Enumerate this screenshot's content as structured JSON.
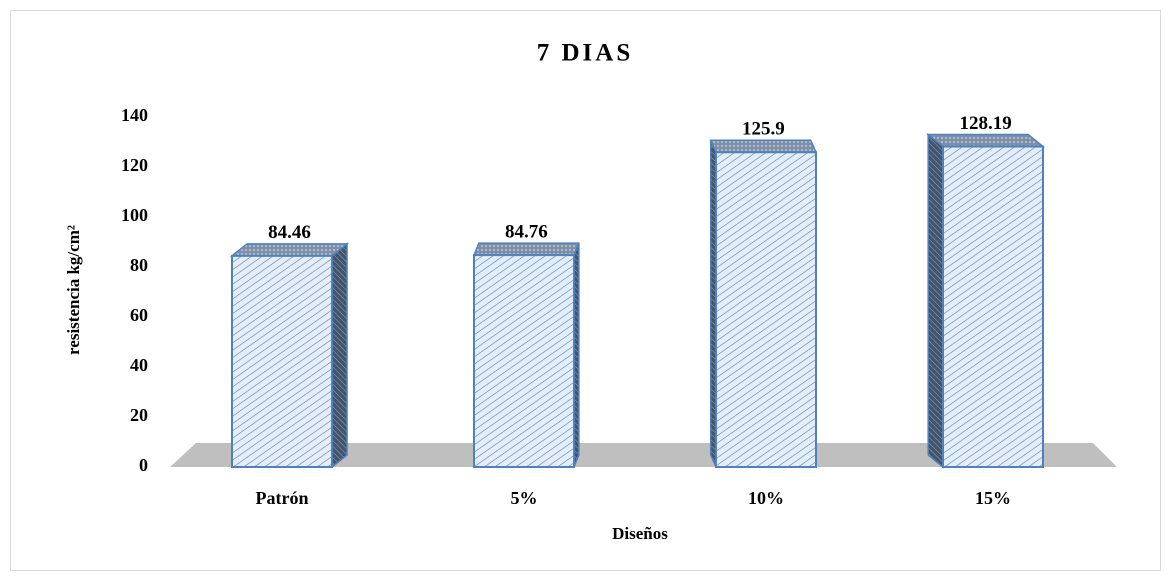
{
  "chart_data": {
    "type": "bar3d",
    "title": "7 DIAS",
    "categories": [
      "Patrón",
      "5%",
      "10%",
      "15%"
    ],
    "values": [
      84.46,
      84.76,
      125.9,
      128.19
    ],
    "color": "#4f81bd",
    "ylim": [
      0,
      140
    ],
    "yticks": [
      0,
      20,
      40,
      60,
      80,
      100,
      120,
      140
    ],
    "grid": false,
    "ylabel": "resistencia kg/cm²",
    "xlabel": "Diseños"
  }
}
